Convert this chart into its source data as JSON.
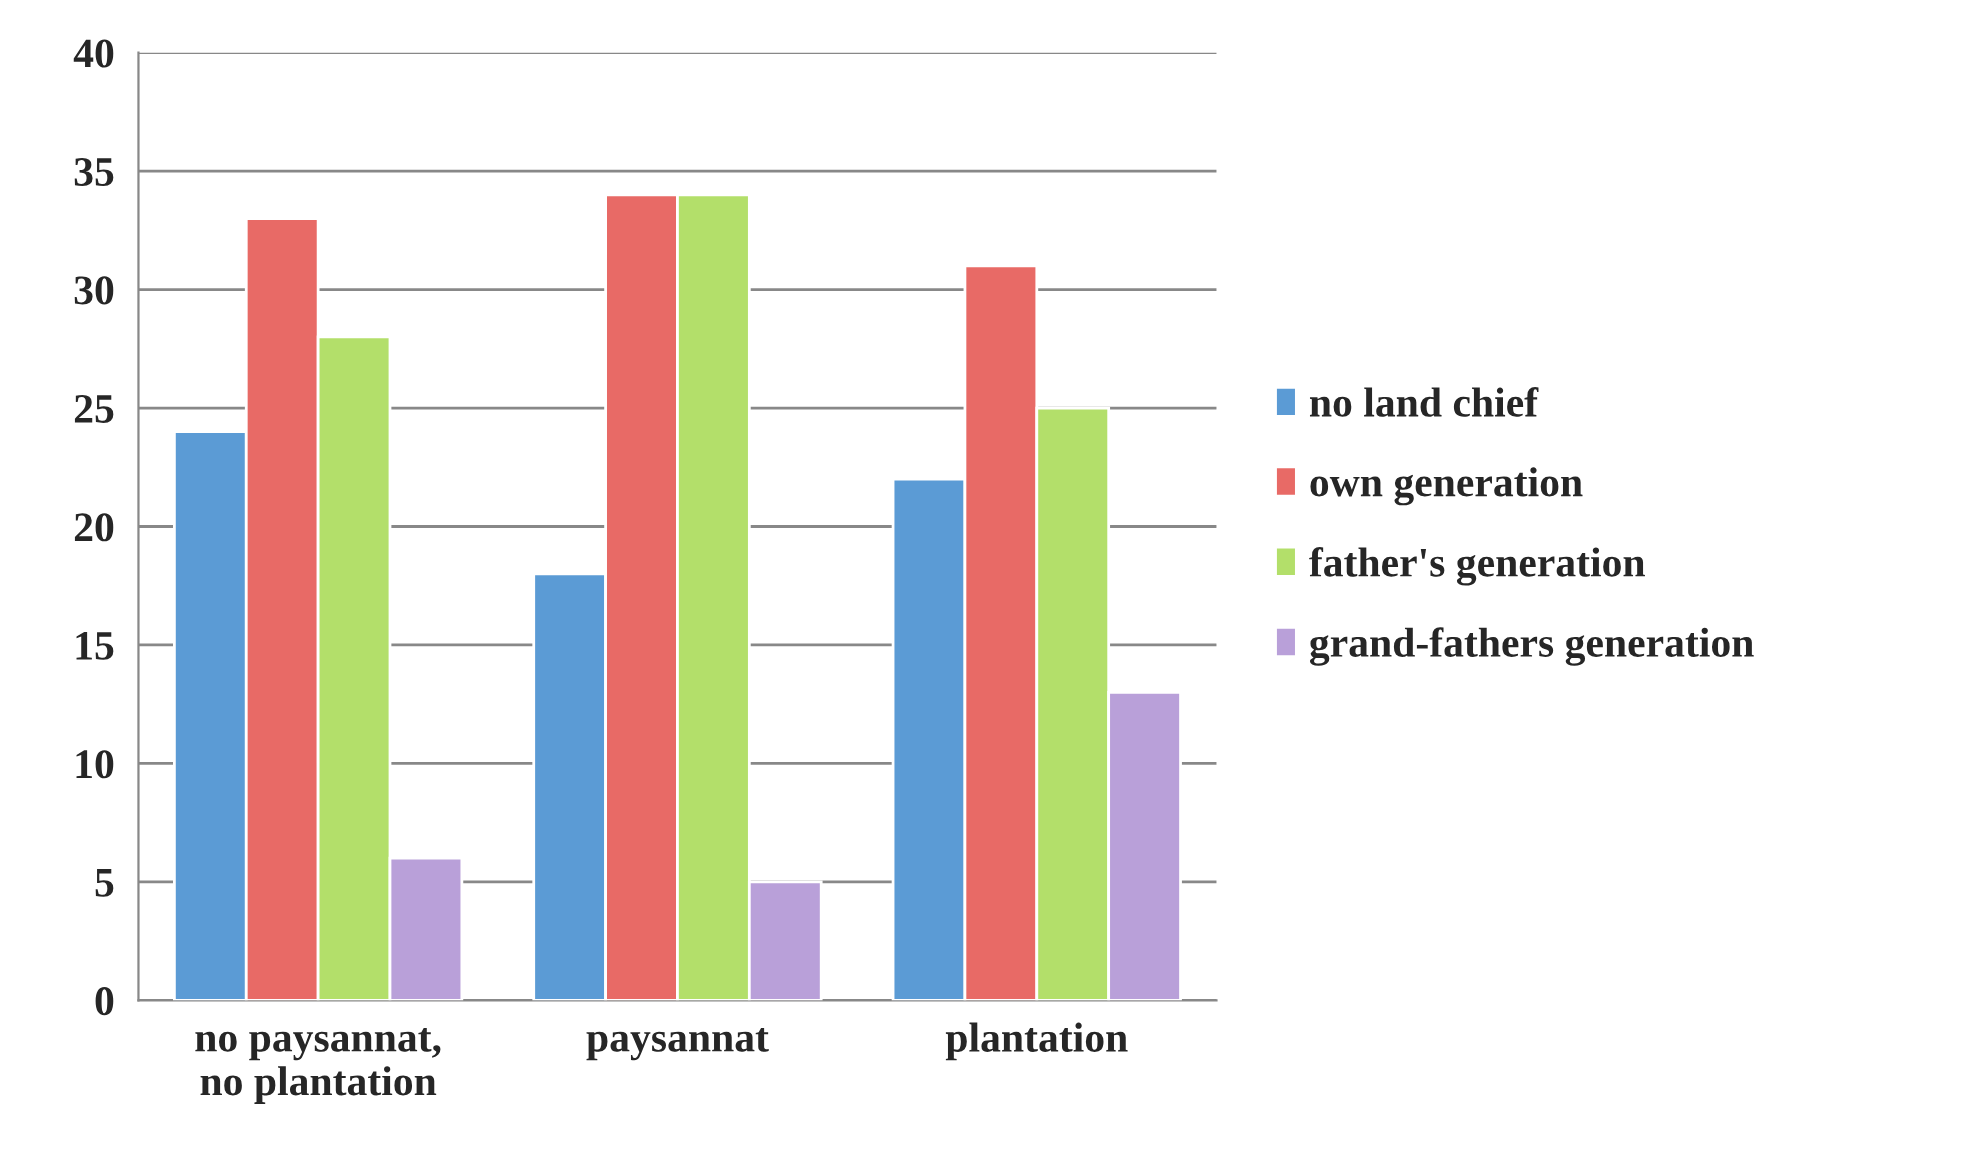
{
  "chart_data": {
    "type": "bar",
    "categories": [
      "no paysannat,\nno plantation",
      "paysannat",
      "plantation"
    ],
    "series": [
      {
        "name": "no land chief",
        "color": "#5b9bd5",
        "values": [
          24,
          18,
          22
        ]
      },
      {
        "name": "own generation",
        "color": "#e86a66",
        "values": [
          33,
          34,
          31
        ]
      },
      {
        "name": "father's generation",
        "color": "#b3df6a",
        "values": [
          28,
          34,
          25
        ]
      },
      {
        "name": "grand-fathers generation",
        "color": "#b9a0d9",
        "values": [
          6,
          5,
          13
        ]
      }
    ],
    "ylim": [
      0,
      40
    ],
    "yticks": [
      0,
      5,
      10,
      15,
      20,
      25,
      30,
      35,
      40
    ],
    "grid": "y",
    "legend": "right"
  }
}
